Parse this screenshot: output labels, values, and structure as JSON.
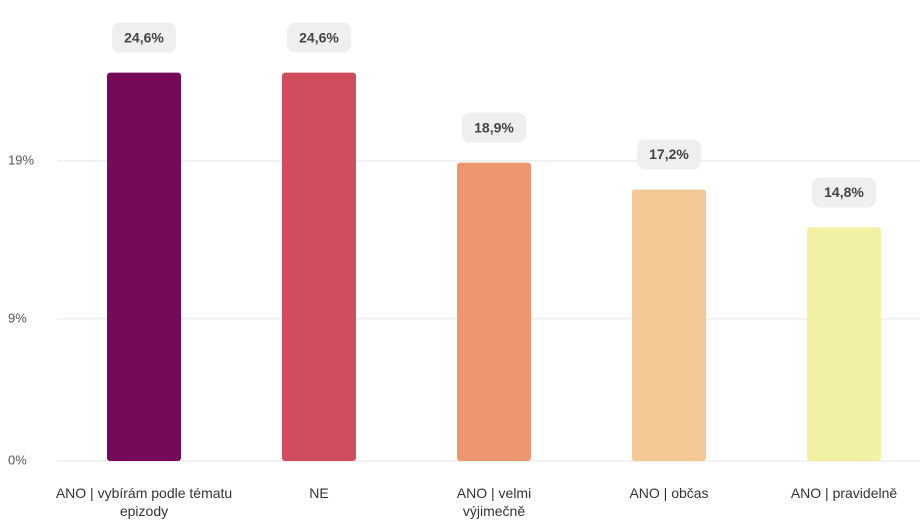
{
  "chart_data": {
    "type": "bar",
    "categories": [
      "ANO | vybírám podle tématu epizody",
      "NE",
      "ANO | velmi výjimečně",
      "ANO | občas",
      "ANO | pravidelně"
    ],
    "values": [
      24.6,
      24.6,
      18.9,
      17.2,
      14.8
    ],
    "value_labels": [
      "24,6%",
      "24,6%",
      "18,9%",
      "17,2%",
      "14,8%"
    ],
    "colors": [
      "#760a5a",
      "#d04c5f",
      "#ec9770",
      "#f3c894",
      "#f2f1a3"
    ],
    "ylim": [
      0,
      29.2
    ],
    "yticks": [
      {
        "value": 0,
        "label": "0%"
      },
      {
        "value": 9,
        "label": "9%"
      },
      {
        "value": 19,
        "label": "19%"
      }
    ],
    "grid": true
  }
}
